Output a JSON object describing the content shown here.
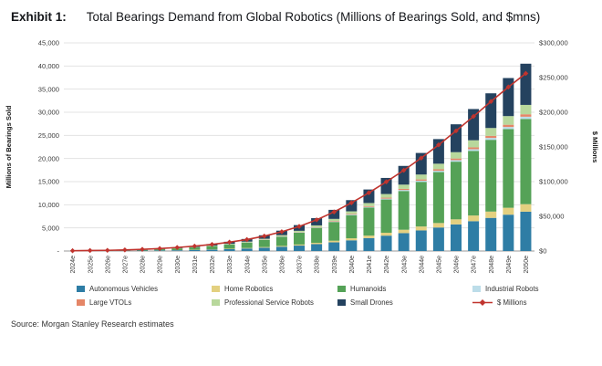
{
  "header": {
    "exhibit_label": "Exhibit 1:",
    "title": "Total Bearings Demand from Global Robotics (Millions of Bearings Sold, and $mns)"
  },
  "source": "Source: Morgan Stanley Research estimates",
  "chart_data": {
    "type": "bar",
    "subtype": "stacked-bars-with-line-overlay",
    "grid": true,
    "legend_position": "bottom",
    "categories": [
      "2024e",
      "2025e",
      "2026e",
      "2027e",
      "2028e",
      "2029e",
      "2030e",
      "2031e",
      "2032e",
      "2033e",
      "2034e",
      "2035e",
      "2036e",
      "2037e",
      "2038e",
      "2039e",
      "2040e",
      "2041e",
      "2042e",
      "2043e",
      "2044e",
      "2045e",
      "2046e",
      "2047e",
      "2048e",
      "2049e",
      "2050e"
    ],
    "left_axis": {
      "title": "Millions of Bearings Sold",
      "min": 0,
      "max": 45000,
      "step": 5000,
      "zero_label": "-"
    },
    "right_axis": {
      "title": "$ Millions",
      "min": 0,
      "max": 300000,
      "step": 50000,
      "prefix": "$"
    },
    "series": [
      {
        "name": "Autonomous Vehicles",
        "color": "#2e7da5",
        "values": [
          13,
          21,
          34,
          53,
          80,
          116,
          168,
          231,
          315,
          420,
          546,
          714,
          924,
          1176,
          1491,
          1869,
          2310,
          2793,
          3318,
          3864,
          4452,
          5082,
          5754,
          6447,
          7161,
          7854,
          8505
        ]
      },
      {
        "name": "Home Robotics",
        "color": "#e3d080",
        "values": [
          2,
          4,
          6,
          10,
          15,
          22,
          32,
          44,
          60,
          80,
          104,
          136,
          176,
          224,
          284,
          356,
          440,
          532,
          632,
          736,
          848,
          968,
          1096,
          1228,
          1364,
          1496,
          1620
        ]
      },
      {
        "name": "Humanoids",
        "color": "#55a257",
        "values": [
          27,
          46,
          73,
          114,
          173,
          250,
          364,
          501,
          683,
          910,
          1183,
          1547,
          2002,
          2548,
          3231,
          4050,
          5005,
          6052,
          7189,
          8372,
          9646,
          11011,
          12467,
          13969,
          15516,
          17017,
          18428
        ]
      },
      {
        "name": "Industrial Robots",
        "color": "#bcdde9",
        "values": [
          1,
          1,
          2,
          3,
          5,
          7,
          10,
          13,
          18,
          24,
          31,
          41,
          53,
          67,
          85,
          107,
          132,
          160,
          190,
          221,
          254,
          290,
          329,
          368,
          409,
          449,
          486
        ]
      },
      {
        "name": "Large VTOLs",
        "color": "#e58667",
        "values": [
          1,
          1,
          2,
          3,
          5,
          7,
          10,
          14,
          20,
          26,
          34,
          44,
          57,
          73,
          92,
          116,
          143,
          173,
          205,
          239,
          276,
          315,
          356,
          399,
          443,
          486,
          527
        ]
      },
      {
        "name": "Professional Service Robots",
        "color": "#b8d89c",
        "values": [
          3,
          5,
          8,
          13,
          19,
          28,
          40,
          55,
          75,
          100,
          130,
          170,
          220,
          280,
          355,
          445,
          550,
          665,
          790,
          920,
          1060,
          1210,
          1370,
          1535,
          1705,
          1870,
          2025
        ]
      },
      {
        "name": "Small Drones",
        "color": "#24425f",
        "values": [
          13,
          22,
          35,
          55,
          84,
          121,
          176,
          242,
          330,
          440,
          572,
          748,
          968,
          1232,
          1562,
          1958,
          2420,
          2926,
          3476,
          4048,
          4664,
          5324,
          6028,
          6754,
          7502,
          8228,
          8910
        ]
      }
    ],
    "line_series": {
      "name": "$ Millions",
      "color": "#c0342e",
      "marker": "diamond",
      "values": [
        400,
        700,
        1000,
        1600,
        2400,
        3500,
        5100,
        7000,
        9500,
        12700,
        16500,
        21500,
        27800,
        35400,
        44900,
        56300,
        69500,
        84000,
        99800,
        116300,
        134000,
        153000,
        173200,
        194000,
        215500,
        236400,
        256000
      ]
    }
  }
}
